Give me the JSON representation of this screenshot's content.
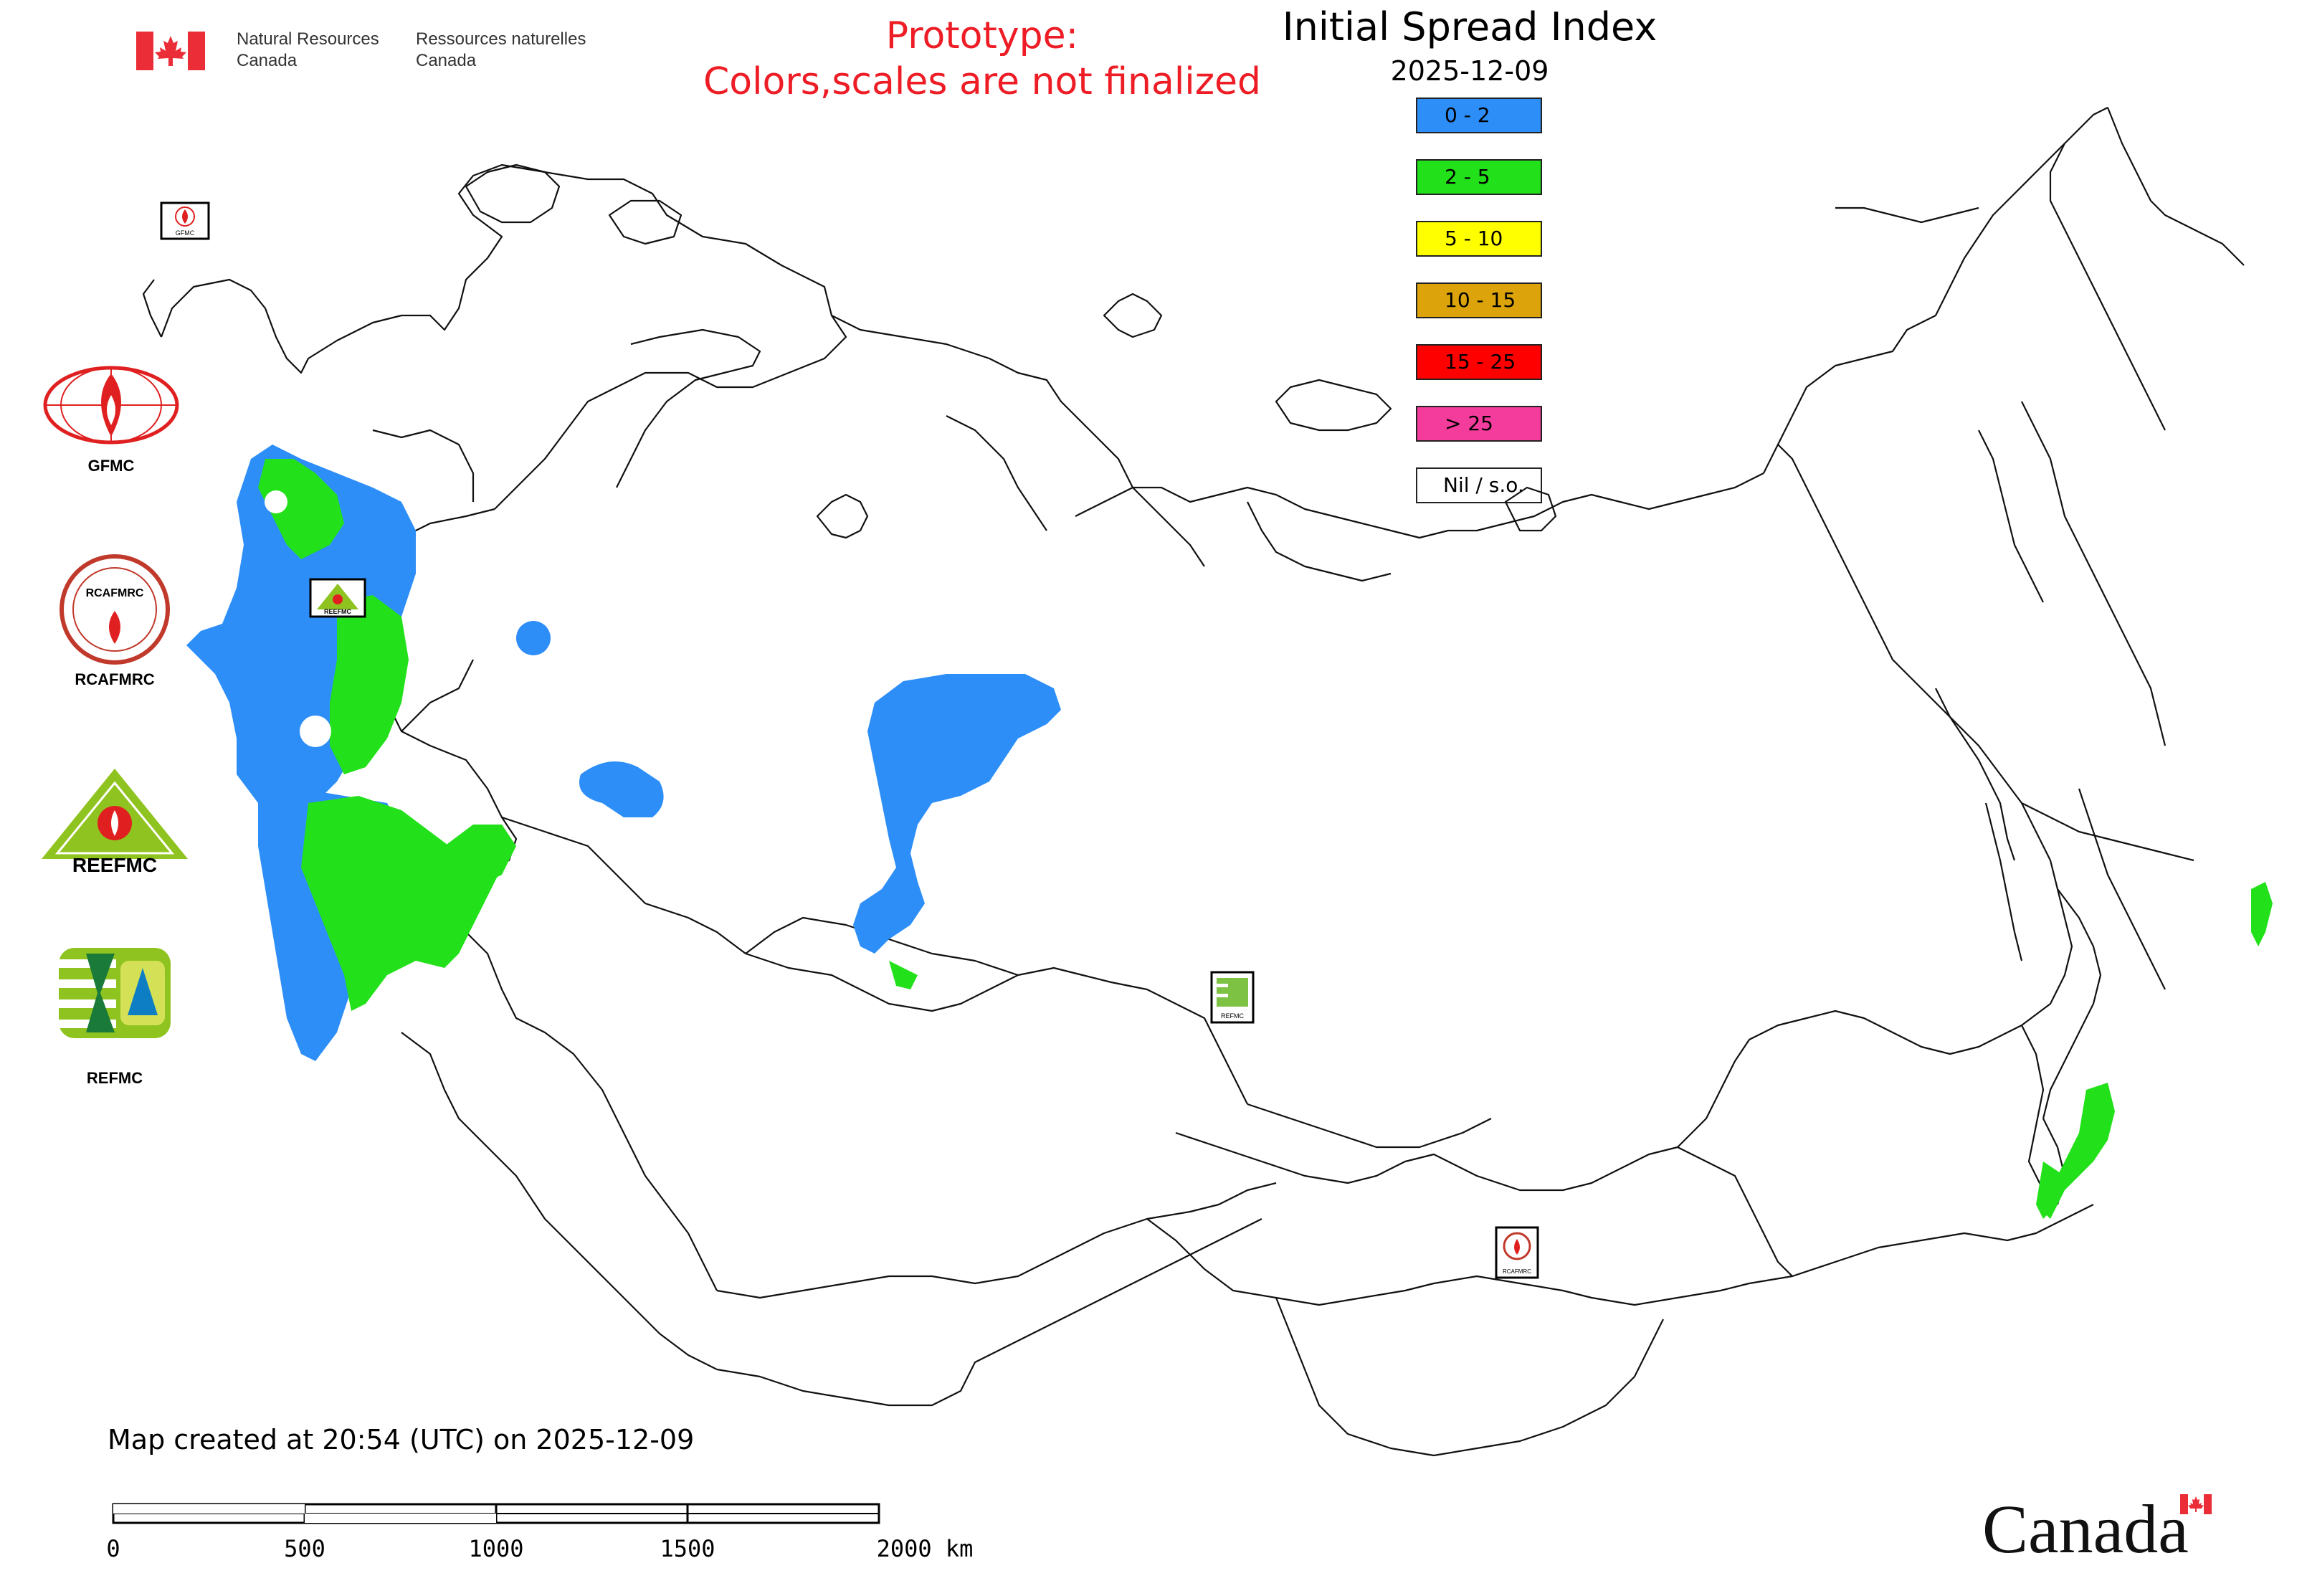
{
  "header": {
    "org_en_line1": "Natural Resources",
    "org_en_line2": "Canada",
    "org_fr_line1": "Ressources naturelles",
    "org_fr_line2": "Canada",
    "prototype_line1": "Prototype:",
    "prototype_line2": "Colors,scales are not finalized",
    "title": "Initial Spread Index",
    "date": "2025-12-09"
  },
  "legend": {
    "items": [
      {
        "label": "0 - 2",
        "color": "#2e8ef8"
      },
      {
        "label": "2 - 5",
        "color": "#22e01a"
      },
      {
        "label": "5 - 10",
        "color": "#ffff00"
      },
      {
        "label": "10 - 15",
        "color": "#dca40a"
      },
      {
        "label": "15 - 25",
        "color": "#ff0000"
      },
      {
        "label": "> 25",
        "color": "#f43c9c"
      },
      {
        "label": "Nil / s.o.",
        "color": "#ffffff"
      }
    ]
  },
  "side_logos": [
    {
      "name": "GFMC",
      "caption": "GFMC"
    },
    {
      "name": "RCAFMRC",
      "caption": "RCAFMRC",
      "logo_text": "RCAFMRC"
    },
    {
      "name": "REEFMC",
      "caption": "",
      "logo_text": "REEFMC"
    },
    {
      "name": "REFMC",
      "caption": "REFMC"
    }
  ],
  "map_badges": {
    "gfmc": "GFMC",
    "reefmc": "REEFMC",
    "refmc": "REFMC",
    "rcafmrc": "RCAFMRC"
  },
  "footer": {
    "created": "Map created at 20:54 (UTC) on 2025-12-09",
    "scale_ticks": [
      "0",
      "500",
      "1000",
      "1500",
      "2000 km"
    ],
    "wordmark": "Canada"
  },
  "colors": {
    "isi_low": "#2e8ef8",
    "isi_moderate": "#22e01a",
    "prototype_red": "#ee1c25",
    "canada_red": "#eb2d37"
  }
}
